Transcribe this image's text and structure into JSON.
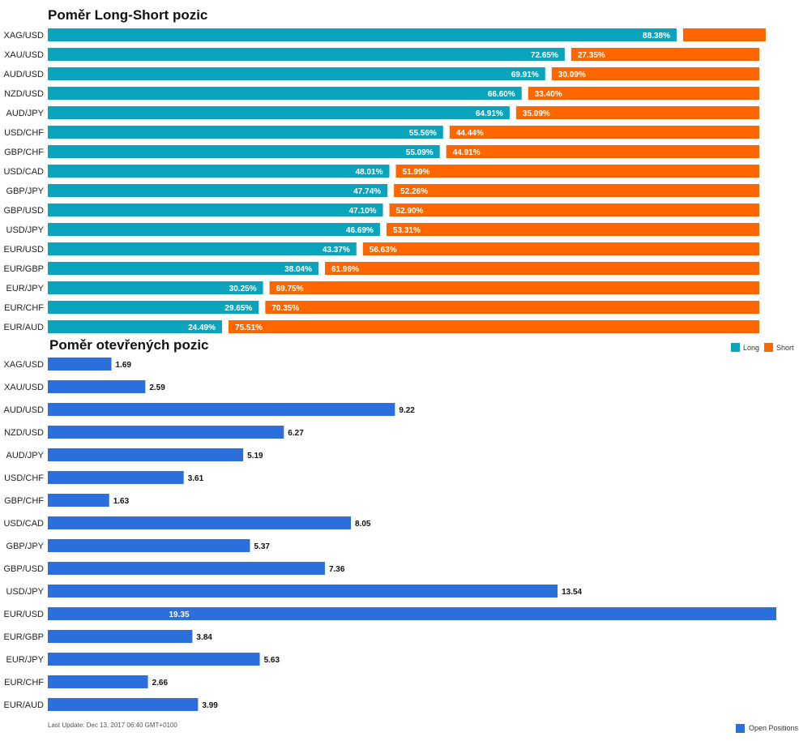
{
  "chart_data": [
    {
      "type": "bar",
      "stacked": "percent",
      "orientation": "horizontal",
      "title": "Poměr Long-Short pozic",
      "categories": [
        "XAG/USD",
        "XAU/USD",
        "AUD/USD",
        "NZD/USD",
        "AUD/JPY",
        "USD/CHF",
        "GBP/CHF",
        "USD/CAD",
        "GBP/JPY",
        "GBP/USD",
        "USD/JPY",
        "EUR/USD",
        "EUR/GBP",
        "EUR/JPY",
        "EUR/CHF",
        "EUR/AUD"
      ],
      "series": [
        {
          "name": "Long",
          "color": "#0aa5bd",
          "values": [
            88.38,
            72.65,
            69.91,
            66.6,
            64.91,
            55.56,
            55.09,
            48.01,
            47.74,
            47.1,
            46.69,
            43.37,
            38.04,
            30.25,
            29.65,
            24.49
          ],
          "labels": [
            "88.38%",
            "72.65%",
            "69.91%",
            "66.60%",
            "64.91%",
            "55.56%",
            "55.09%",
            "48.01%",
            "47.74%",
            "47.10%",
            "46.69%",
            "43.37%",
            "38.04%",
            "30.25%",
            "29.65%",
            "24.49%"
          ]
        },
        {
          "name": "Short",
          "color": "#ff6600",
          "values": [
            11.62,
            27.35,
            30.09,
            33.4,
            35.09,
            44.44,
            44.91,
            51.99,
            52.26,
            52.9,
            53.31,
            56.63,
            61.96,
            69.75,
            70.35,
            75.51
          ],
          "labels": [
            "",
            "27.35%",
            "30.09%",
            "33.40%",
            "35.09%",
            "44.44%",
            "44.91%",
            "51.99%",
            "52.26%",
            "52.90%",
            "53.31%",
            "56.63%",
            "61.96%",
            "69.75%",
            "70.35%",
            "75.51%"
          ]
        }
      ],
      "legend": [
        "Long",
        "Short"
      ],
      "legend_position": "right"
    },
    {
      "type": "bar",
      "orientation": "horizontal",
      "title": "Poměr otevřených pozic",
      "categories": [
        "XAG/USD",
        "XAU/USD",
        "AUD/USD",
        "NZD/USD",
        "AUD/JPY",
        "USD/CHF",
        "GBP/CHF",
        "USD/CAD",
        "GBP/JPY",
        "GBP/USD",
        "USD/JPY",
        "EUR/USD",
        "EUR/GBP",
        "EUR/JPY",
        "EUR/CHF",
        "EUR/AUD"
      ],
      "series": [
        {
          "name": "Open Positions",
          "color": "#2a6fdb",
          "values": [
            1.69,
            2.59,
            9.22,
            6.27,
            5.19,
            3.61,
            1.63,
            8.05,
            5.37,
            7.36,
            13.54,
            19.35,
            3.84,
            5.63,
            2.66,
            3.99
          ],
          "labels": [
            "1.69",
            "2.59",
            "9.22",
            "6.27",
            "5.19",
            "3.61",
            "1.63",
            "8.05",
            "5.37",
            "7.36",
            "13.54",
            "19.35",
            "3.84",
            "5.63",
            "2.66",
            "3.99"
          ]
        }
      ],
      "xlim": [
        0,
        19.35
      ],
      "legend": [
        "Open Positions"
      ],
      "legend_position": "bottom-right"
    }
  ],
  "footer": {
    "last_update": "Last Update: Dec 13, 2017 06:40 GMT+0100"
  }
}
